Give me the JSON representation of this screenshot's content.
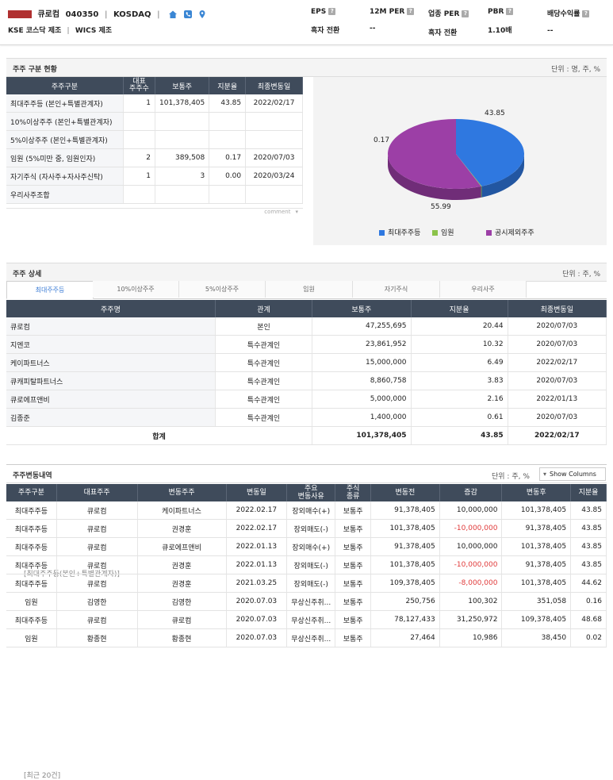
{
  "header": {
    "company_name": "큐로컴",
    "code": "040350",
    "group": "KOSDAQ",
    "sub_industry": "KSE 코스닥 제조",
    "sub_wics": "WICS 제조",
    "kpis": [
      {
        "label": "EPS",
        "value": "흑자 전환"
      },
      {
        "label": "12M PER",
        "value": "--"
      },
      {
        "label": "업종 PER",
        "value": "흑자 전환"
      },
      {
        "label": "PBR",
        "value": "1.10배"
      },
      {
        "label": "배당수익률",
        "value": "--"
      }
    ]
  },
  "holder_summary": {
    "title": "주주 구분 현황",
    "unit": "단위 : 명, 주, %",
    "columns": [
      "주주구분",
      "대표\n주주수",
      "보통주",
      "지분율",
      "최종변동일"
    ],
    "rows": [
      [
        "최대주주등 (본인+특별관계자)",
        "1",
        "101,378,405",
        "43.85",
        "2022/02/17"
      ],
      [
        "10%이상주주 (본인+특별관계자)",
        "",
        "",
        "",
        ""
      ],
      [
        "5%이상주주 (본인+특별관계자)",
        "",
        "",
        "",
        ""
      ],
      [
        "임원 (5%미만 중, 임원인자)",
        "2",
        "389,508",
        "0.17",
        "2020/07/03"
      ],
      [
        "자기주식 (자사주+자사주신탁)",
        "1",
        "3",
        "0.00",
        "2020/03/24"
      ],
      [
        "우리사주조합",
        "",
        "",
        "",
        ""
      ]
    ],
    "comment_label": "comment"
  },
  "chart_data": {
    "type": "pie",
    "slices": [
      {
        "name": "최대주주등",
        "value": 43.85,
        "color": "#2f78e0"
      },
      {
        "name": "임원",
        "value": 0.17,
        "color": "#8bc34a"
      },
      {
        "name": "공시제외주주",
        "value": 55.99,
        "color": "#9c3fa6"
      }
    ],
    "labels": [
      "43.85",
      "0.17",
      "55.99"
    ]
  },
  "detail": {
    "title": "주주 상세",
    "subtitle": "[최대주주등(본인+특별관계자)]",
    "unit": "단위 : 주, %",
    "tabs": [
      "최대주주등",
      "10%이상주주",
      "5%이상주주",
      "임원",
      "자기주식",
      "우리사주"
    ],
    "columns": [
      "주주명",
      "관계",
      "보통주",
      "지분율",
      "최종변동일"
    ],
    "rows": [
      [
        "큐로컴",
        "본인",
        "47,255,695",
        "20.44",
        "2020/07/03"
      ],
      [
        "지엔코",
        "특수관계인",
        "23,861,952",
        "10.32",
        "2020/07/03"
      ],
      [
        "케이파트너스",
        "특수관계인",
        "15,000,000",
        "6.49",
        "2022/02/17"
      ],
      [
        "큐캐피탈파트너스",
        "특수관계인",
        "8,860,758",
        "3.83",
        "2020/07/03"
      ],
      [
        "큐로에프앤비",
        "특수관계인",
        "5,000,000",
        "2.16",
        "2022/01/13"
      ],
      [
        "김종준",
        "특수관계인",
        "1,400,000",
        "0.61",
        "2020/07/03"
      ]
    ],
    "total": [
      "합계",
      "101,378,405",
      "43.85",
      "2022/02/17"
    ]
  },
  "changes": {
    "title": "주주변동내역",
    "subtitle": "[최근 20건]",
    "unit": "단위 : 주, %",
    "show_columns_label": "Show Columns",
    "columns": [
      "주주구분",
      "대표주주",
      "변동주주",
      "변동일",
      "주요\n변동사유",
      "주식\n종류",
      "변동전",
      "증감",
      "변동후",
      "지분율"
    ],
    "rows": [
      [
        "최대주주등",
        "큐로컴",
        "케이파트너스",
        "2022.02.17",
        "장외매수(+)",
        "보통주",
        "91,378,405",
        "10,000,000",
        "101,378,405",
        "43.85"
      ],
      [
        "최대주주등",
        "큐로컴",
        "권경훈",
        "2022.02.17",
        "장외매도(-)",
        "보통주",
        "101,378,405",
        "-10,000,000",
        "91,378,405",
        "43.85"
      ],
      [
        "최대주주등",
        "큐로컴",
        "큐로에프앤비",
        "2022.01.13",
        "장외매수(+)",
        "보통주",
        "91,378,405",
        "10,000,000",
        "101,378,405",
        "43.85"
      ],
      [
        "최대주주등",
        "큐로컴",
        "권경훈",
        "2022.01.13",
        "장외매도(-)",
        "보통주",
        "101,378,405",
        "-10,000,000",
        "91,378,405",
        "43.85"
      ],
      [
        "최대주주등",
        "큐로컴",
        "권경훈",
        "2021.03.25",
        "장외매도(-)",
        "보통주",
        "109,378,405",
        "-8,000,000",
        "101,378,405",
        "44.62"
      ],
      [
        "임원",
        "김영한",
        "김영한",
        "2020.07.03",
        "무상신주취...",
        "보통주",
        "250,756",
        "100,302",
        "351,058",
        "0.16"
      ],
      [
        "최대주주등",
        "큐로컴",
        "큐로컴",
        "2020.07.03",
        "무상신주취...",
        "보통주",
        "78,127,433",
        "31,250,972",
        "109,378,405",
        "48.68"
      ],
      [
        "임원",
        "황종현",
        "황종현",
        "2020.07.03",
        "무상신주취...",
        "보통주",
        "27,464",
        "10,986",
        "38,450",
        "0.02"
      ]
    ]
  }
}
